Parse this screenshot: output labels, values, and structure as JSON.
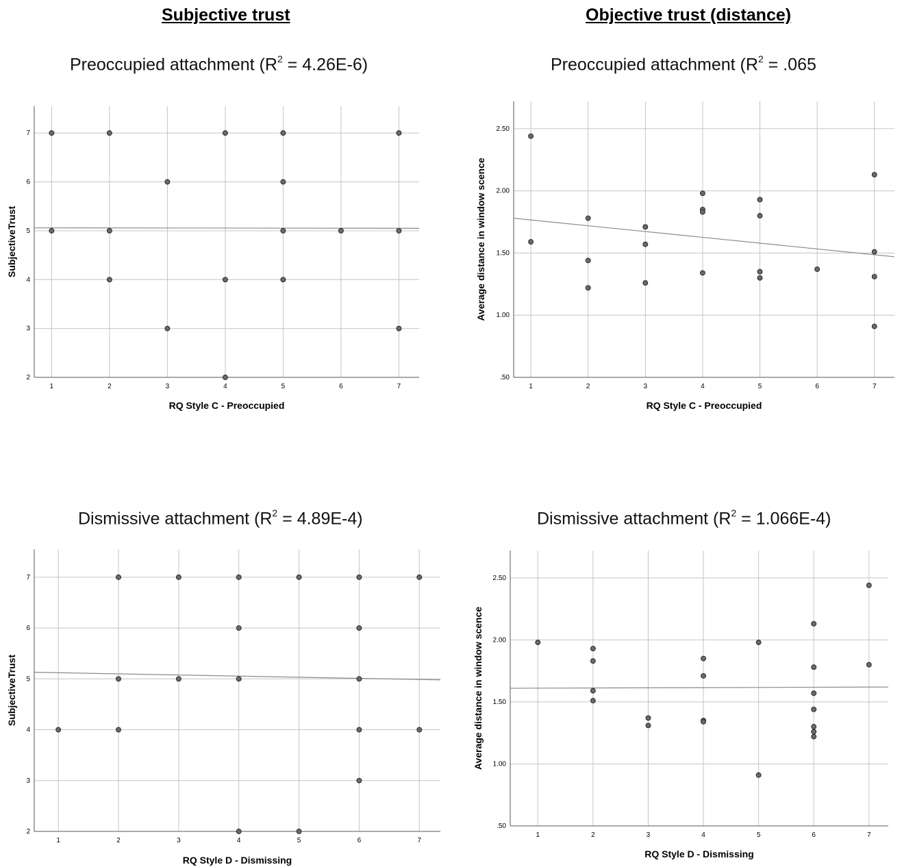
{
  "headings": {
    "left": "Subjective trust",
    "right": "Objective trust (distance)"
  },
  "chart_data": [
    {
      "type": "scatter",
      "title_prefix": "Preoccupied attachment (R",
      "title_sup": "2",
      "title_suffix": " = 4.26E-6)",
      "xlabel": "RQ Style C - Preoccupied",
      "ylabel": "SubjectiveTrust",
      "xlim": [
        0.7,
        7.35
      ],
      "ylim": [
        2,
        7.55
      ],
      "xticks": [
        1,
        2,
        3,
        4,
        5,
        6,
        7
      ],
      "yticks": [
        2,
        3,
        4,
        5,
        6,
        7
      ],
      "ytick_labels": [
        "2",
        "3",
        "4",
        "5",
        "6",
        "7"
      ],
      "grid": true,
      "fit_line": [
        [
          0.7,
          5.06
        ],
        [
          7.35,
          5.05
        ]
      ],
      "points": [
        [
          1,
          7
        ],
        [
          2,
          7
        ],
        [
          4,
          7
        ],
        [
          5,
          7
        ],
        [
          7,
          7
        ],
        [
          3,
          6
        ],
        [
          5,
          6
        ],
        [
          1,
          5
        ],
        [
          2,
          5
        ],
        [
          5,
          5
        ],
        [
          6,
          5
        ],
        [
          7,
          5
        ],
        [
          2,
          4
        ],
        [
          4,
          4
        ],
        [
          5,
          4
        ],
        [
          3,
          3
        ],
        [
          7,
          3
        ],
        [
          4,
          2
        ]
      ]
    },
    {
      "type": "scatter",
      "title_prefix": "Preoccupied attachment (R",
      "title_sup": "2",
      "title_suffix": " = .065",
      "xlabel": "RQ Style C - Preoccupied",
      "ylabel": "Average distance in window scence",
      "xlim": [
        0.7,
        7.35
      ],
      "ylim": [
        0.5,
        2.72
      ],
      "xticks": [
        1,
        2,
        3,
        4,
        5,
        6,
        7
      ],
      "yticks": [
        0.5,
        1.0,
        1.5,
        2.0,
        2.5
      ],
      "ytick_labels": [
        ".50",
        "1.00",
        "1.50",
        "2.00",
        "2.50"
      ],
      "grid": true,
      "fit_line": [
        [
          0.7,
          1.78
        ],
        [
          7.35,
          1.47
        ]
      ],
      "points": [
        [
          1,
          2.44
        ],
        [
          1,
          1.59
        ],
        [
          2,
          1.78
        ],
        [
          2,
          1.44
        ],
        [
          2,
          1.22
        ],
        [
          3,
          1.71
        ],
        [
          3,
          1.57
        ],
        [
          3,
          1.26
        ],
        [
          4,
          1.98
        ],
        [
          4,
          1.85
        ],
        [
          4,
          1.83
        ],
        [
          4,
          1.34
        ],
        [
          5,
          1.93
        ],
        [
          5,
          1.8
        ],
        [
          5,
          1.35
        ],
        [
          5,
          1.3
        ],
        [
          6,
          1.37
        ],
        [
          7,
          2.13
        ],
        [
          7,
          1.51
        ],
        [
          7,
          1.31
        ],
        [
          7,
          0.91
        ]
      ]
    },
    {
      "type": "scatter",
      "title_prefix": "Dismissive attachment (R",
      "title_sup": "2",
      "title_suffix": " = 4.89E-4)",
      "xlabel": "RQ Style D - Dismissing",
      "ylabel": "SubjectiveTrust",
      "xlim": [
        0.6,
        7.35
      ],
      "ylim": [
        2,
        7.55
      ],
      "xticks": [
        1,
        2,
        3,
        4,
        5,
        6,
        7
      ],
      "yticks": [
        2,
        3,
        4,
        5,
        6,
        7
      ],
      "ytick_labels": [
        "2",
        "3",
        "4",
        "5",
        "6",
        "7"
      ],
      "grid": true,
      "fit_line": [
        [
          0.6,
          5.13
        ],
        [
          7.35,
          4.98
        ]
      ],
      "points": [
        [
          2,
          7
        ],
        [
          3,
          7
        ],
        [
          4,
          7
        ],
        [
          5,
          7
        ],
        [
          6,
          7
        ],
        [
          7,
          7
        ],
        [
          4,
          6
        ],
        [
          6,
          6
        ],
        [
          2,
          5
        ],
        [
          3,
          5
        ],
        [
          4,
          5
        ],
        [
          6,
          5
        ],
        [
          1,
          4
        ],
        [
          2,
          4
        ],
        [
          6,
          4
        ],
        [
          7,
          4
        ],
        [
          6,
          3
        ],
        [
          4,
          2
        ],
        [
          5,
          2
        ]
      ]
    },
    {
      "type": "scatter",
      "title_prefix": "Dismissive attachment (R",
      "title_sup": "2",
      "title_suffix": " = 1.066E-4)",
      "xlabel": "RQ Style D - Dismissing",
      "ylabel": "Average distance in window scence",
      "xlim": [
        0.5,
        7.35
      ],
      "ylim": [
        0.5,
        2.72
      ],
      "xticks": [
        1,
        2,
        3,
        4,
        5,
        6,
        7
      ],
      "yticks": [
        0.5,
        1.0,
        1.5,
        2.0,
        2.5
      ],
      "ytick_labels": [
        ".50",
        "1.00",
        "1.50",
        "2.00",
        "2.50"
      ],
      "grid": true,
      "fit_line": [
        [
          0.5,
          1.61
        ],
        [
          7.35,
          1.62
        ]
      ],
      "points": [
        [
          1,
          1.98
        ],
        [
          2,
          1.93
        ],
        [
          2,
          1.83
        ],
        [
          2,
          1.59
        ],
        [
          2,
          1.51
        ],
        [
          3,
          1.37
        ],
        [
          3,
          1.31
        ],
        [
          4,
          1.85
        ],
        [
          4,
          1.71
        ],
        [
          4,
          1.35
        ],
        [
          4,
          1.34
        ],
        [
          5,
          1.98
        ],
        [
          5,
          0.91
        ],
        [
          6,
          2.13
        ],
        [
          6,
          1.78
        ],
        [
          6,
          1.57
        ],
        [
          6,
          1.44
        ],
        [
          6,
          1.3
        ],
        [
          6,
          1.26
        ],
        [
          6,
          1.22
        ],
        [
          7,
          2.44
        ],
        [
          7,
          1.8
        ]
      ]
    }
  ]
}
